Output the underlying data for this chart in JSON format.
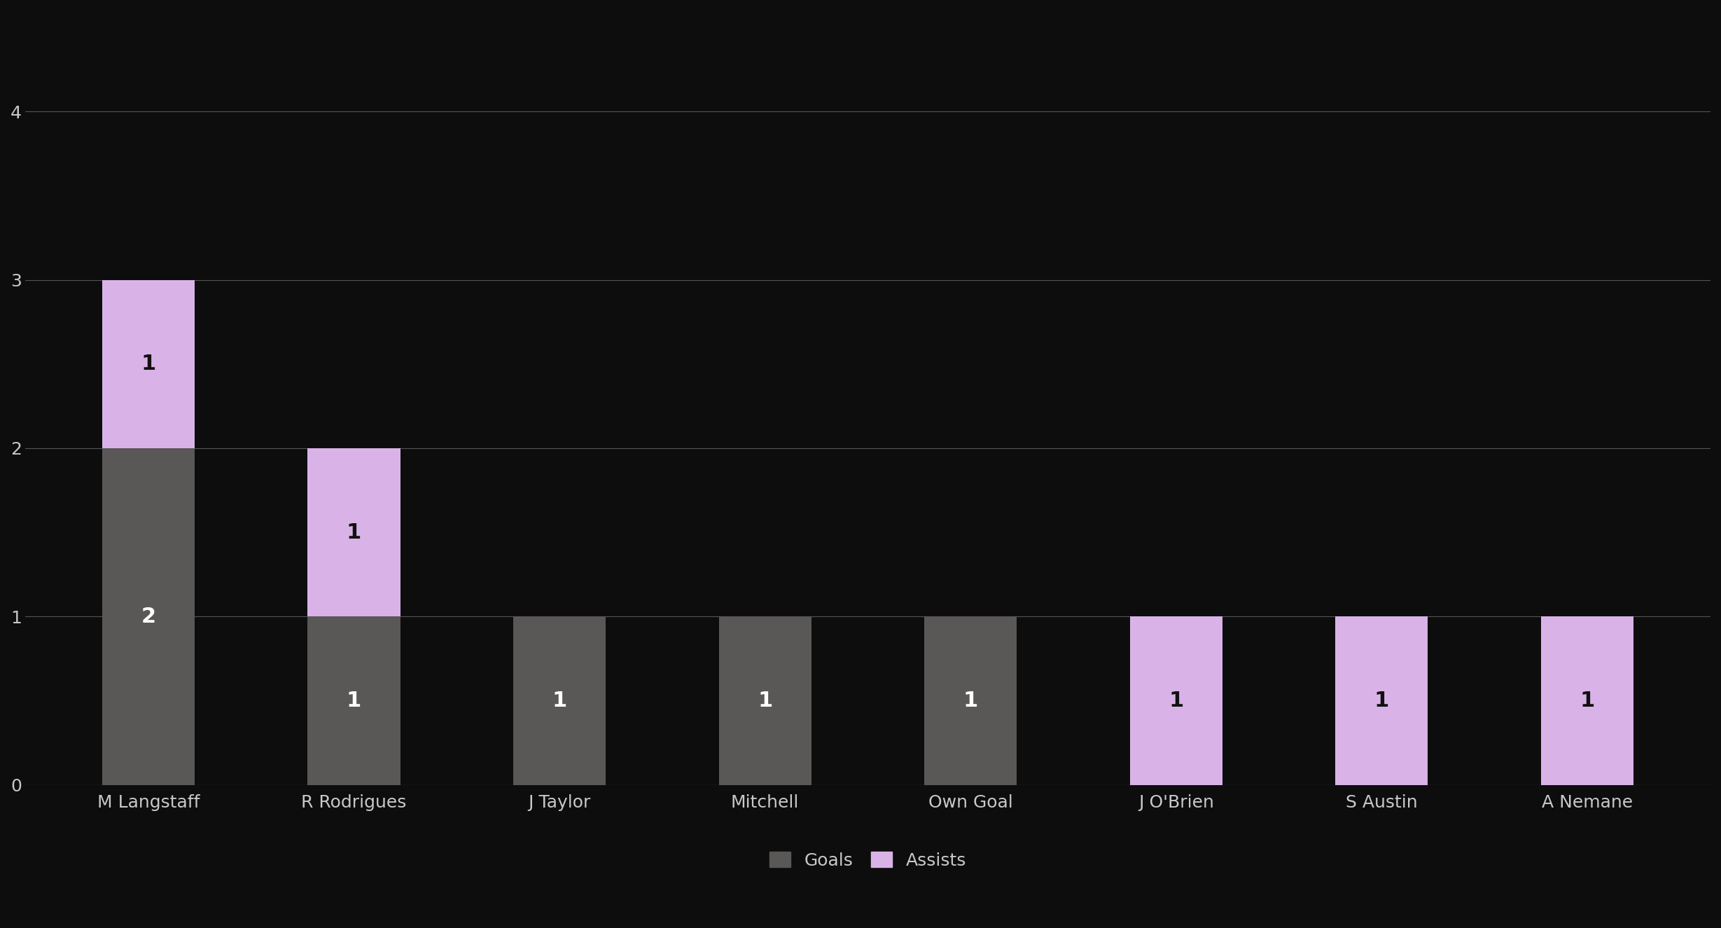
{
  "categories": [
    "M Langstaff",
    "R Rodrigues",
    "J Taylor",
    "Mitchell",
    "Own Goal",
    "J O'Brien",
    "S Austin",
    "A Nemane"
  ],
  "goals": [
    2,
    1,
    1,
    1,
    1,
    0,
    0,
    0
  ],
  "assists": [
    1,
    1,
    0,
    0,
    0,
    1,
    1,
    1
  ],
  "goal_color": "#5a5757",
  "assist_color": "#d9b3e8",
  "background_color": "#0d0d0d",
  "text_color": "#c8c8c8",
  "grid_color": "#555555",
  "bar_width": 0.45,
  "ylim": [
    0,
    4.6
  ],
  "yticks": [
    0,
    1,
    2,
    3,
    4
  ],
  "legend_goal_label": "Goals",
  "legend_assist_label": "Assists",
  "tick_fontsize": 18,
  "value_fontsize": 22,
  "legend_fontsize": 18,
  "goal_label_color": "#ffffff",
  "assist_label_color": "#111111"
}
